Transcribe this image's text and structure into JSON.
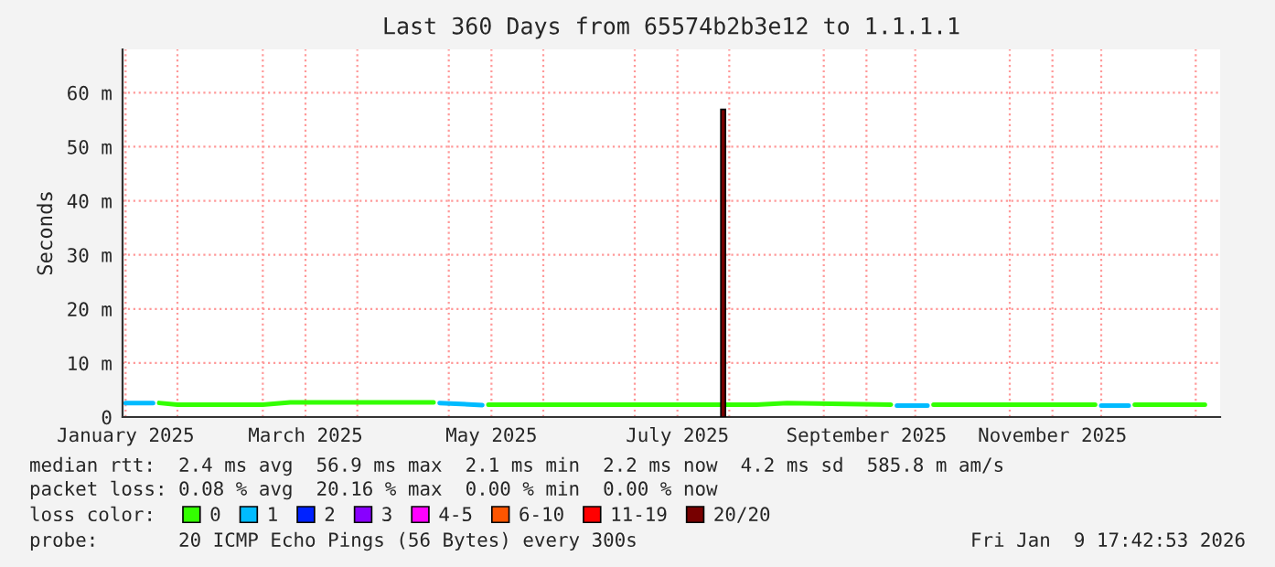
{
  "chart_data": {
    "type": "line",
    "title": "Last 360 Days from 65574b2b3e12 to 1.1.1.1",
    "ylabel": "Seconds",
    "xlim": [
      "2025-01-14",
      "2026-01-09"
    ],
    "xticks": [
      {
        "value": "2025-01-15",
        "label": "January 2025"
      },
      {
        "value": "2025-02-01",
        "label": null
      },
      {
        "value": "2025-03-01",
        "label": null
      },
      {
        "value": "2025-03-15",
        "label": "March 2025"
      },
      {
        "value": "2025-04-01",
        "label": null
      },
      {
        "value": "2025-05-01",
        "label": null
      },
      {
        "value": "2025-05-15",
        "label": "May 2025"
      },
      {
        "value": "2025-06-01",
        "label": null
      },
      {
        "value": "2025-07-01",
        "label": null
      },
      {
        "value": "2025-07-15",
        "label": "July 2025"
      },
      {
        "value": "2025-08-01",
        "label": null
      },
      {
        "value": "2025-09-01",
        "label": null
      },
      {
        "value": "2025-09-15",
        "label": "September 2025"
      },
      {
        "value": "2025-10-01",
        "label": null
      },
      {
        "value": "2025-11-01",
        "label": null
      },
      {
        "value": "2025-11-15",
        "label": "November 2025"
      },
      {
        "value": "2025-12-01",
        "label": null
      },
      {
        "value": "2026-01-01",
        "label": null
      }
    ],
    "ylim": [
      0,
      68
    ],
    "yticks": [
      0,
      {
        "value": 10,
        "label": "10 m"
      },
      {
        "value": 20,
        "label": "20 m"
      },
      {
        "value": 30,
        "label": "30 m"
      },
      {
        "value": 40,
        "label": "40 m"
      },
      {
        "value": 50,
        "label": "50 m"
      },
      {
        "value": 60,
        "label": "60 m"
      }
    ],
    "grid": true,
    "legend": "bottom",
    "legend_title": "loss color:",
    "series": [
      {
        "name": "0",
        "color": "#33ff00",
        "x": [
          "2025-01-26",
          "2025-02-01",
          "2025-02-15",
          "2025-03-01",
          "2025-03-10",
          "2025-04-01",
          "2025-04-26",
          "2025-05-05",
          "2025-05-14",
          "2025-06-01",
          "2025-06-20",
          "2025-07-10",
          "2025-07-29",
          "2025-07-30",
          "2025-07-31",
          "2025-08-10",
          "2025-08-20",
          "2025-09-23",
          "2025-09-30",
          "2025-10-07",
          "2025-11-10",
          "2025-11-29",
          "2025-12-05",
          "2025-12-12",
          "2026-01-04"
        ],
        "values": [
          2.6,
          2.3,
          2.3,
          2.3,
          2.7,
          2.7,
          2.7,
          null,
          2.3,
          2.3,
          2.3,
          2.3,
          2.3,
          null,
          2.3,
          2.3,
          2.6,
          2.3,
          null,
          2.3,
          2.3,
          2.3,
          null,
          2.3,
          2.3
        ]
      },
      {
        "name": "1",
        "color": "#00bbff",
        "x": [
          "2025-01-15",
          "2025-01-24",
          "2025-01-28",
          "2025-04-28",
          "2025-05-12",
          "2025-05-20",
          "2025-09-25",
          "2025-10-05",
          "2025-10-08",
          "2025-12-01",
          "2025-12-10"
        ],
        "values": [
          2.6,
          2.6,
          null,
          2.6,
          2.2,
          null,
          2.1,
          2.1,
          null,
          2.1,
          2.1
        ]
      },
      {
        "name": "2",
        "color": "#0022ff"
      },
      {
        "name": "3",
        "color": "#8800ff"
      },
      {
        "name": "4-5",
        "color": "#ff00ff"
      },
      {
        "name": "6-10",
        "color": "#ff5500"
      },
      {
        "name": "11-19",
        "color": "#ff0000"
      },
      {
        "name": "20/20",
        "color": "#770000",
        "type": "bar",
        "x": [
          "2025-07-30"
        ],
        "values": [
          56.9
        ]
      }
    ],
    "annotations": [
      "median rtt:  2.4 ms avg  56.9 ms max  2.1 ms min  2.2 ms now  4.2 ms sd  585.8 m am/s",
      "packet loss: 0.08 % avg  20.16 % max  0.00 % min  0.00 % now",
      "probe:       20 ICMP Echo Pings (56 Bytes) every 300s",
      "Fri Jan  9 17:42:53 2026"
    ]
  }
}
